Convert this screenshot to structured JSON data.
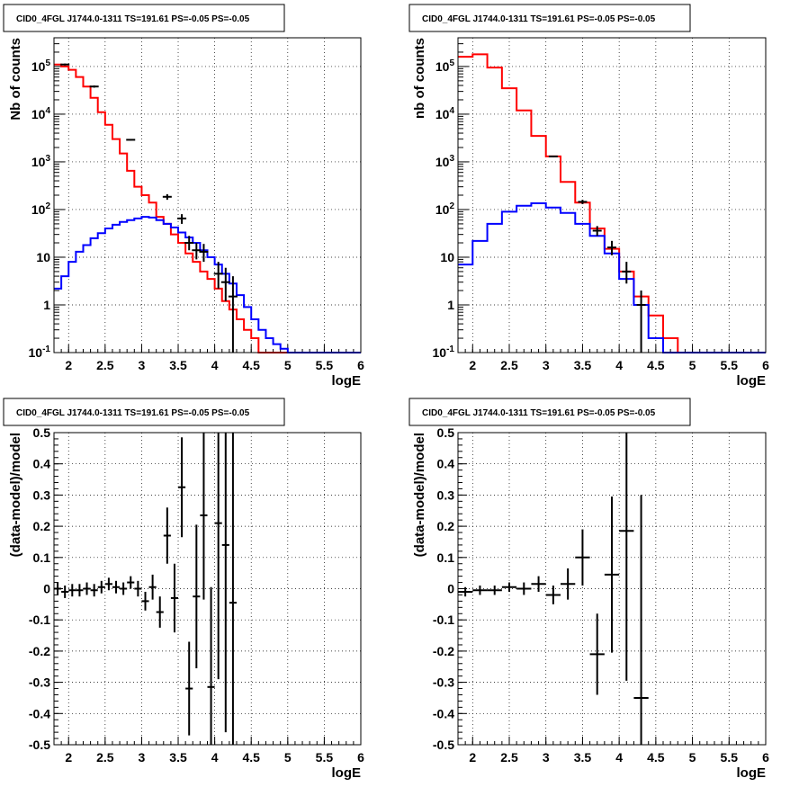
{
  "chart_data": [
    {
      "type": "line",
      "title": "CID0_4FGL J1744.0-1311 TS=191.61 PS=-0.05 PS=-0.05",
      "xlabel": "logE",
      "ylabel": "Nb of counts",
      "yscale": "log",
      "xlim": [
        1.8,
        6.0
      ],
      "ylim": [
        0.1,
        400000
      ],
      "xticks": [
        "2",
        "2.5",
        "3",
        "3.5",
        "4",
        "4.5",
        "5",
        "5.5",
        "6"
      ],
      "yticks": [
        "10^-1",
        "1",
        "10",
        "10^2",
        "10^3",
        "10^4",
        "10^5"
      ],
      "grid": true,
      "series": [
        {
          "color": "#ff0000",
          "bin_edges": [
            1.8,
            1.9,
            2.0,
            2.1,
            2.2,
            2.3,
            2.4,
            2.5,
            2.6,
            2.7,
            2.8,
            2.9,
            3.0,
            3.1,
            3.2,
            3.3,
            3.4,
            3.5,
            3.6,
            3.7,
            3.8,
            3.9,
            4.0,
            4.1,
            4.2,
            4.3,
            4.4,
            4.5,
            4.6,
            4.7,
            4.8,
            4.9,
            5.0,
            5.1,
            5.2,
            5.3,
            5.4,
            5.5,
            5.6,
            5.7,
            5.8,
            5.9,
            6.0
          ],
          "values": [
            110000,
            100000,
            85000,
            60000,
            38000,
            22000,
            11000,
            6000,
            3000,
            1500,
            650,
            300,
            200,
            140,
            70,
            50,
            30,
            20,
            12,
            8,
            5,
            3.5,
            2.2,
            1.2,
            0.8,
            0.5,
            0.3,
            0.2,
            0.1,
            0.1,
            0.1,
            0.1,
            0.1,
            0.1,
            0.1,
            0.1,
            0.1,
            0.1,
            0.1,
            0.1,
            0.1,
            0.1
          ]
        },
        {
          "color": "#0000ff",
          "bin_edges": [
            1.8,
            1.9,
            2.0,
            2.1,
            2.2,
            2.3,
            2.4,
            2.5,
            2.6,
            2.7,
            2.8,
            2.9,
            3.0,
            3.1,
            3.2,
            3.3,
            3.4,
            3.5,
            3.6,
            3.7,
            3.8,
            3.9,
            4.0,
            4.1,
            4.2,
            4.3,
            4.4,
            4.5,
            4.6,
            4.7,
            4.8,
            4.9,
            5.0,
            5.1,
            5.2,
            5.3,
            5.4,
            5.5,
            5.6,
            5.7,
            5.8,
            5.9,
            6.0
          ],
          "values": [
            2.2,
            4,
            8,
            13,
            18,
            25,
            32,
            40,
            48,
            55,
            60,
            65,
            70,
            68,
            60,
            50,
            42,
            33,
            26,
            20,
            14,
            10,
            7,
            4.5,
            2.8,
            1.6,
            0.9,
            0.5,
            0.3,
            0.2,
            0.15,
            0.12,
            0.1,
            0.1,
            0.1,
            0.1,
            0.1,
            0.1,
            0.1,
            0.1,
            0.1,
            0.1
          ]
        }
      ],
      "data_points": [
        {
          "x": 1.95,
          "y": 110000,
          "lo": 105000,
          "hi": 115000
        },
        {
          "x": 2.35,
          "y": 38000,
          "lo": 36000,
          "hi": 40000
        },
        {
          "x": 2.85,
          "y": 2900,
          "lo": 2800,
          "hi": 3000
        },
        {
          "x": 3.35,
          "y": 185,
          "lo": 160,
          "hi": 210
        },
        {
          "x": 3.55,
          "y": 65,
          "lo": 50,
          "hi": 80
        },
        {
          "x": 3.65,
          "y": 20,
          "lo": 14,
          "hi": 28
        },
        {
          "x": 3.75,
          "y": 14,
          "lo": 9,
          "hi": 20
        },
        {
          "x": 3.85,
          "y": 13,
          "lo": 8,
          "hi": 19
        },
        {
          "x": 4.05,
          "y": 4.5,
          "lo": 2.2,
          "hi": 8
        },
        {
          "x": 4.15,
          "y": 3,
          "lo": 1.2,
          "hi": 6
        },
        {
          "x": 4.25,
          "y": 1.5,
          "lo": 0.1,
          "hi": 4
        }
      ]
    },
    {
      "type": "line",
      "title": "CID0_4FGL J1744.0-1311 TS=191.61 PS=-0.05 PS=-0.05",
      "xlabel": "logE",
      "ylabel": "nb of counts",
      "yscale": "log",
      "xlim": [
        1.8,
        6.0
      ],
      "ylim": [
        0.1,
        400000
      ],
      "xticks": [
        "2",
        "2.5",
        "3",
        "3.5",
        "4",
        "4.5",
        "5",
        "5.5",
        "6"
      ],
      "yticks": [
        "10^-1",
        "1",
        "10",
        "10^2",
        "10^3",
        "10^4",
        "10^5"
      ],
      "grid": true,
      "series": [
        {
          "color": "#ff0000",
          "bin_edges": [
            1.8,
            2.0,
            2.2,
            2.4,
            2.6,
            2.8,
            3.0,
            3.2,
            3.4,
            3.6,
            3.8,
            4.0,
            4.2,
            4.4,
            4.6,
            4.8,
            5.0,
            5.2,
            5.4,
            5.6,
            5.8,
            6.0
          ],
          "values": [
            160000,
            180000,
            95000,
            35000,
            12000,
            3500,
            1300,
            380,
            140,
            40,
            15,
            5,
            1.5,
            0.6,
            0.2,
            0.1,
            0.1,
            0.1,
            0.1,
            0.1,
            0.1
          ]
        },
        {
          "color": "#0000ff",
          "bin_edges": [
            1.8,
            2.0,
            2.2,
            2.4,
            2.6,
            2.8,
            3.0,
            3.2,
            3.4,
            3.6,
            3.8,
            4.0,
            4.2,
            4.4,
            4.6,
            4.8,
            5.0,
            5.2,
            5.4,
            5.6,
            5.8,
            6.0
          ],
          "values": [
            7,
            22,
            50,
            90,
            120,
            135,
            110,
            85,
            50,
            28,
            12,
            3.5,
            1,
            0.2,
            0.1,
            0.1,
            0.1,
            0.1,
            0.1,
            0.1,
            0.1
          ]
        }
      ],
      "data_points": [
        {
          "x": 3.1,
          "y": 1300,
          "lo": 1250,
          "hi": 1350
        },
        {
          "x": 3.5,
          "y": 145,
          "lo": 130,
          "hi": 160
        },
        {
          "x": 3.7,
          "y": 36,
          "lo": 28,
          "hi": 45
        },
        {
          "x": 3.9,
          "y": 16,
          "lo": 11,
          "hi": 22
        },
        {
          "x": 4.1,
          "y": 5,
          "lo": 2.8,
          "hi": 8
        },
        {
          "x": 4.3,
          "y": 1,
          "lo": 0.1,
          "hi": 2
        }
      ]
    },
    {
      "type": "scatter",
      "title": "CID0_4FGL J1744.0-1311 TS=191.61 PS=-0.05 PS=-0.05",
      "xlabel": "logE",
      "ylabel": "(data-model)/model",
      "xlim": [
        1.8,
        6.0
      ],
      "ylim": [
        -0.5,
        0.5
      ],
      "xticks": [
        "2",
        "2.5",
        "3",
        "3.5",
        "4",
        "4.5",
        "5",
        "5.5",
        "6"
      ],
      "yticks": [
        "-0.5",
        "-0.4",
        "-0.3",
        "-0.2",
        "-0.1",
        "0",
        "0.1",
        "0.2",
        "0.3",
        "0.4",
        "0.5"
      ],
      "grid": true,
      "points": [
        {
          "x": 1.85,
          "y": 0.0,
          "err": 0.02
        },
        {
          "x": 1.95,
          "y": -0.01,
          "err": 0.02
        },
        {
          "x": 2.05,
          "y": -0.005,
          "err": 0.02
        },
        {
          "x": 2.15,
          "y": -0.005,
          "err": 0.02
        },
        {
          "x": 2.25,
          "y": 0.0,
          "err": 0.02
        },
        {
          "x": 2.35,
          "y": -0.005,
          "err": 0.02
        },
        {
          "x": 2.45,
          "y": 0.005,
          "err": 0.02
        },
        {
          "x": 2.55,
          "y": 0.015,
          "err": 0.02
        },
        {
          "x": 2.65,
          "y": 0.005,
          "err": 0.02
        },
        {
          "x": 2.75,
          "y": 0.0,
          "err": 0.02
        },
        {
          "x": 2.85,
          "y": 0.02,
          "err": 0.02
        },
        {
          "x": 2.95,
          "y": 0.0,
          "err": 0.025
        },
        {
          "x": 3.05,
          "y": -0.04,
          "err": 0.03
        },
        {
          "x": 3.15,
          "y": 0.005,
          "err": 0.04
        },
        {
          "x": 3.25,
          "y": -0.075,
          "err": 0.05
        },
        {
          "x": 3.35,
          "y": 0.17,
          "err": 0.09
        },
        {
          "x": 3.45,
          "y": -0.03,
          "err": 0.11
        },
        {
          "x": 3.55,
          "y": 0.325,
          "err": 0.16
        },
        {
          "x": 3.65,
          "y": -0.32,
          "err": 0.15
        },
        {
          "x": 3.75,
          "y": -0.025,
          "err": 0.23
        },
        {
          "x": 3.85,
          "y": 0.235,
          "err": 0.27
        },
        {
          "x": 3.95,
          "y": -0.315,
          "err": 0.32
        },
        {
          "x": 4.05,
          "y": 0.21,
          "err": 0.5
        },
        {
          "x": 4.15,
          "y": 0.14,
          "err": 0.6
        },
        {
          "x": 4.25,
          "y": -0.045,
          "err": 0.8
        }
      ]
    },
    {
      "type": "scatter",
      "title": "CID0_4FGL J1744.0-1311 TS=191.61 PS=-0.05 PS=-0.05",
      "xlabel": "logE",
      "ylabel": "(data-model)/model",
      "xlim": [
        1.8,
        6.0
      ],
      "ylim": [
        -0.5,
        0.5
      ],
      "xticks": [
        "2",
        "2.5",
        "3",
        "3.5",
        "4",
        "4.5",
        "5",
        "5.5",
        "6"
      ],
      "yticks": [
        "-0.5",
        "-0.4",
        "-0.3",
        "-0.2",
        "-0.1",
        "0",
        "0.1",
        "0.2",
        "0.3",
        "0.4",
        "0.5"
      ],
      "grid": true,
      "points": [
        {
          "x": 1.9,
          "y": -0.01,
          "err": 0.015
        },
        {
          "x": 2.1,
          "y": -0.005,
          "err": 0.015
        },
        {
          "x": 2.3,
          "y": -0.005,
          "err": 0.015
        },
        {
          "x": 2.5,
          "y": 0.005,
          "err": 0.015
        },
        {
          "x": 2.7,
          "y": 0.0,
          "err": 0.02
        },
        {
          "x": 2.9,
          "y": 0.015,
          "err": 0.025
        },
        {
          "x": 3.1,
          "y": -0.02,
          "err": 0.03
        },
        {
          "x": 3.3,
          "y": 0.015,
          "err": 0.05
        },
        {
          "x": 3.5,
          "y": 0.1,
          "err": 0.09
        },
        {
          "x": 3.7,
          "y": -0.21,
          "err": 0.13
        },
        {
          "x": 3.9,
          "y": 0.045,
          "err": 0.25
        },
        {
          "x": 4.1,
          "y": 0.185,
          "err": 0.48
        },
        {
          "x": 4.3,
          "y": -0.35,
          "err": 0.65
        }
      ]
    }
  ]
}
